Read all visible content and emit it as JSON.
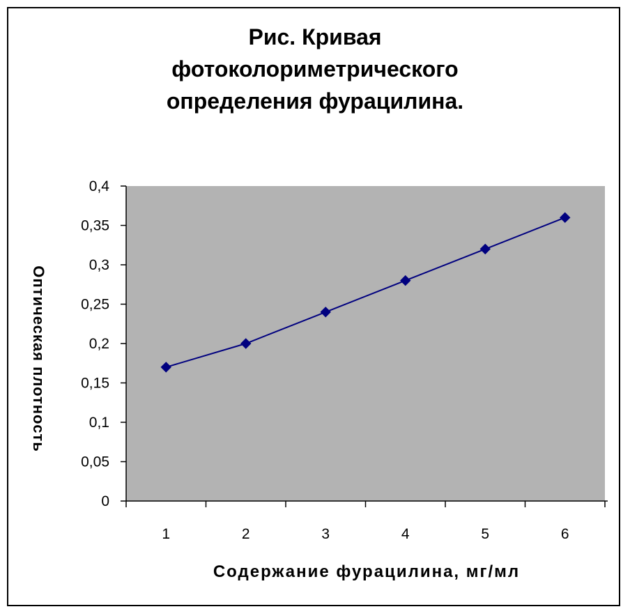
{
  "chart_data": {
    "type": "line",
    "title_lines": [
      "Рис. Кривая",
      "фотоколориметрического",
      "определения фурацилина."
    ],
    "xlabel": "Содержание фурацилина, мг/мл",
    "ylabel": "Оптическая плотность",
    "categories": [
      "1",
      "2",
      "3",
      "4",
      "5",
      "6"
    ],
    "series": [
      {
        "values": [
          0.17,
          0.2,
          0.24,
          0.28,
          0.32,
          0.36
        ]
      }
    ],
    "ylim": [
      0,
      0.4
    ],
    "yticks": [
      0,
      0.05,
      0.1,
      0.15,
      0.2,
      0.25,
      0.3,
      0.35,
      0.4
    ],
    "ytick_labels": [
      "0",
      "0,05",
      "0,1",
      "0,15",
      "0,2",
      "0,25",
      "0,3",
      "0,35",
      "0,4"
    ],
    "grid": false,
    "legend": "none",
    "colors": {
      "plot_area": "#b3b3b3",
      "series": "#00007f"
    }
  }
}
